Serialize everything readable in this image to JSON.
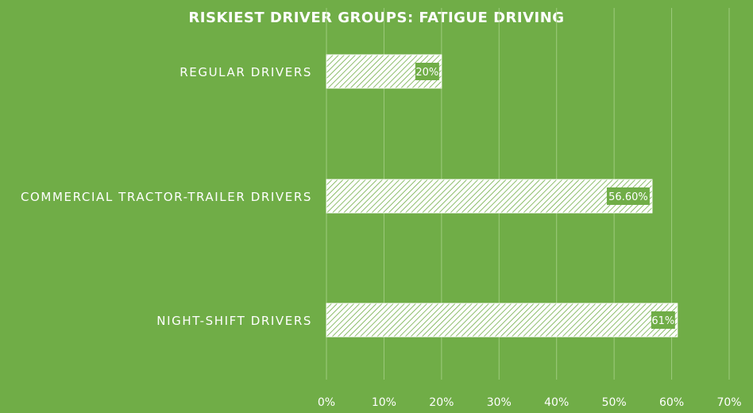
{
  "chart_data": {
    "type": "bar",
    "orientation": "horizontal",
    "title": "RISKIEST DRIVER GROUPS: FATIGUE DRIVING",
    "categories": [
      "REGULAR DRIVERS",
      "COMMERCIAL TRACTOR-TRAILER DRIVERS",
      "NIGHT-SHIFT DRIVERS"
    ],
    "values": [
      20,
      56.6,
      61
    ],
    "data_labels": [
      "20%",
      "56.60%",
      "61%"
    ],
    "x_ticks": [
      "0%",
      "10%",
      "20%",
      "30%",
      "40%",
      "50%",
      "60%",
      "70%"
    ],
    "xlim": [
      0,
      70
    ],
    "xlabel": "",
    "ylabel": "",
    "grid": true,
    "legend": "none",
    "colors": {
      "background": "#70AD47",
      "bar_fill": "#FFFFFF",
      "hatch": "#70AD47",
      "gridline": "#9ECB7E",
      "data_label_bg": "#70AD47",
      "text": "#FFFFFF"
    }
  }
}
